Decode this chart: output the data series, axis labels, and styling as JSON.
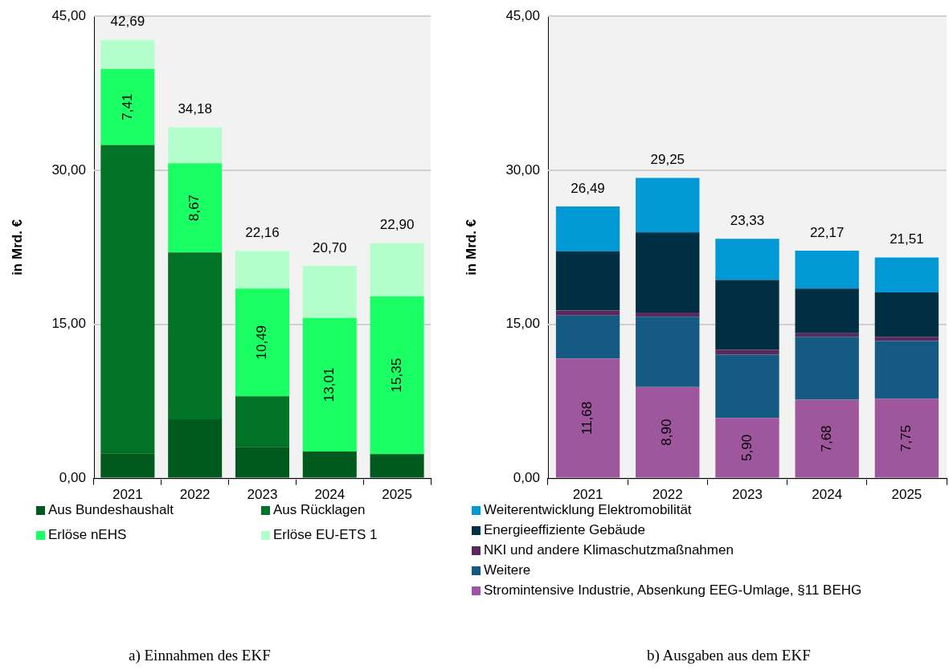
{
  "chart_data": [
    {
      "type": "bar",
      "stacked": true,
      "ylabel": "in Mrd. €",
      "categories": [
        "2021",
        "2022",
        "2023",
        "2024",
        "2025"
      ],
      "ylim": [
        0,
        45
      ],
      "yticks": [
        {
          "value": 0,
          "label": "0,00"
        },
        {
          "value": 15,
          "label": "15,00"
        },
        {
          "value": 30,
          "label": "30,00"
        },
        {
          "value": 45,
          "label": "45,00"
        }
      ],
      "grid": "y",
      "legend": "bottom",
      "series": [
        {
          "name": "Aus Bundeshaushalt",
          "color": "#005a1e",
          "values": [
            2.46,
            5.76,
            3.08,
            2.62,
            2.37
          ]
        },
        {
          "name": "Aus Rücklagen",
          "color": "#007326",
          "values": [
            30.0,
            16.25,
            4.92,
            0,
            0
          ]
        },
        {
          "name": "Erlöse nEHS",
          "color": "#19ff64",
          "values": [
            7.41,
            8.67,
            10.49,
            13.01,
            15.35
          ],
          "value_labels": [
            "7,41",
            "8,67",
            "10,49",
            "13,01",
            "15,35"
          ]
        },
        {
          "name": "Erlöse EU-ETS 1",
          "color": "#b3ffcc",
          "values": [
            2.82,
            3.5,
            3.67,
            5.07,
            5.18
          ]
        }
      ],
      "totals": [
        "42,69",
        "34,18",
        "22,16",
        "20,70",
        "22,90"
      ],
      "annotations": [
        "a) Einnahmen des EKF"
      ]
    },
    {
      "type": "bar",
      "stacked": true,
      "ylabel": "in Mrd. €",
      "categories": [
        "2021",
        "2022",
        "2023",
        "2024",
        "2025"
      ],
      "ylim": [
        0,
        45
      ],
      "yticks": [
        {
          "value": 0,
          "label": "0,00"
        },
        {
          "value": 15,
          "label": "15,00"
        },
        {
          "value": 30,
          "label": "30,00"
        },
        {
          "value": 45,
          "label": "45,00"
        }
      ],
      "grid": "y",
      "legend": "bottom",
      "series": [
        {
          "name": "Stromintensive Industrie, Absenkung EEG-Umlage, §11 BEHG",
          "color": "#9e579c",
          "values": [
            11.68,
            8.9,
            5.9,
            7.68,
            7.75
          ],
          "value_labels": [
            "11,68",
            "8,90",
            "5,90",
            "7,68",
            "7,75"
          ]
        },
        {
          "name": "Weitere",
          "color": "#155a82",
          "values": [
            4.19,
            6.85,
            6.16,
            6.11,
            5.64
          ]
        },
        {
          "name": "NKI und andere Klimaschutzmaßnahmen",
          "color": "#5b2a5c",
          "values": [
            0.48,
            0.4,
            0.47,
            0.35,
            0.4
          ]
        },
        {
          "name": "Energieeffiziente Gebäude",
          "color": "#002e42",
          "values": [
            5.76,
            7.81,
            6.79,
            4.35,
            4.32
          ]
        },
        {
          "name": "Weiterentwicklung Elektromobilität",
          "color": "#0099d6",
          "values": [
            4.38,
            5.29,
            4.01,
            3.68,
            3.4
          ]
        }
      ],
      "totals": [
        "26,49",
        "29,25",
        "23,33",
        "22,17",
        "21,51"
      ],
      "annotations": [
        "b) Ausgaben aus dem EKF"
      ]
    }
  ]
}
